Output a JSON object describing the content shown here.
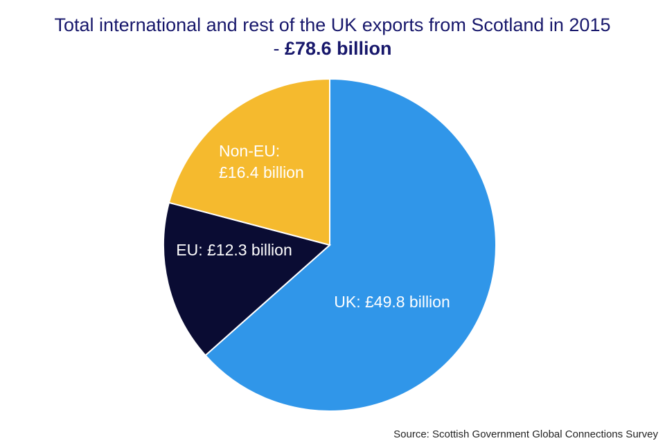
{
  "chart_data": {
    "type": "pie",
    "title": [
      "Total international and rest of the UK exports from Scotland in 2015",
      "-",
      "£78.6 billion"
    ],
    "categories": [
      "UK",
      "EU",
      "Non-EU"
    ],
    "values": [
      49.8,
      12.3,
      16.4
    ],
    "value_labels": [
      [
        "UK: £49.8 billion"
      ],
      [
        "EU: £12.3 billion"
      ],
      [
        "Non-EU:",
        "£16.4 billion"
      ]
    ],
    "colors": [
      "#3096e9",
      "#0a0c33",
      "#f5ba2e"
    ],
    "source": "Source: Scottish Government Global Connections Survey"
  }
}
